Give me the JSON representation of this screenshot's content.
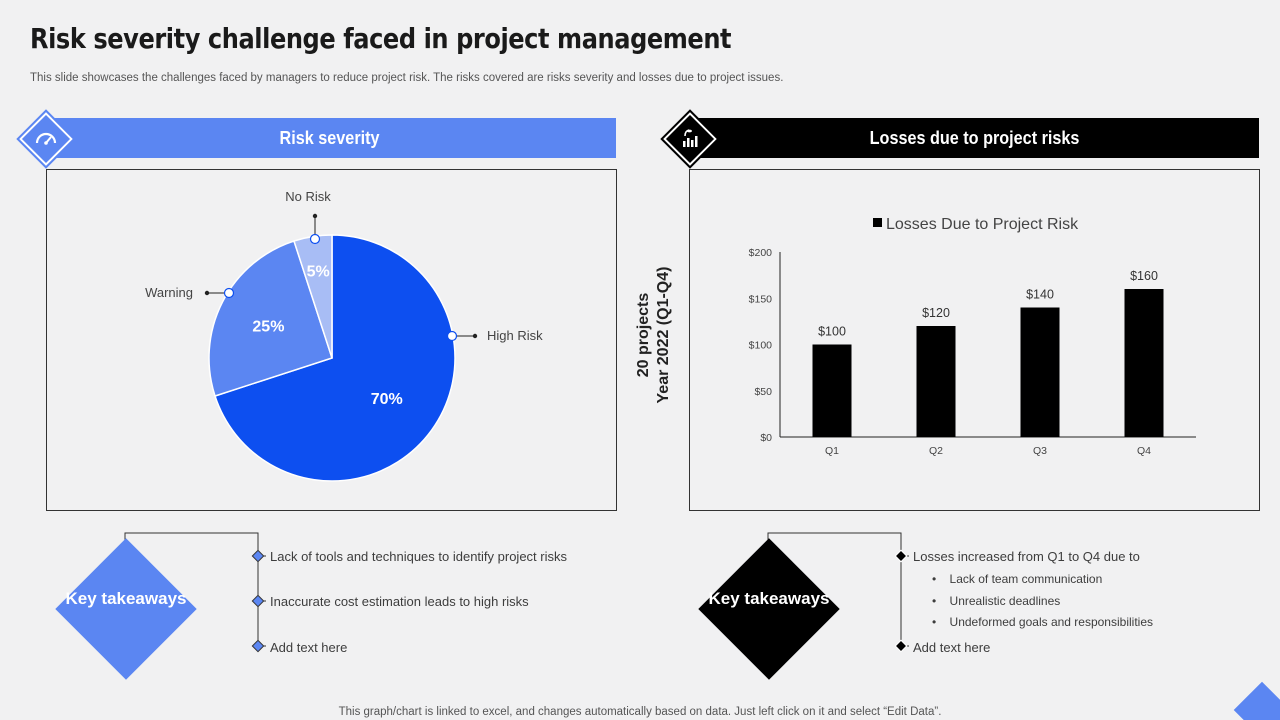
{
  "page": {
    "title": "Risk severity challenge faced in project management",
    "subtitle": "This slide showcases the challenges faced by managers to reduce project risk. The risks covered are risks severity and losses due to project issues.",
    "footer": "This graph/chart is linked to excel,  and changes automatically based on data. Just left click on it and select “Edit Data”."
  },
  "left": {
    "banner": "Risk severity",
    "key_takeaways": "Key takeaways",
    "bullets": [
      "Lack of tools and techniques to identify project risks",
      "Inaccurate cost estimation leads to high risks",
      "Add text here"
    ]
  },
  "right": {
    "banner": "Losses due to project risks",
    "axis_title_line1": "20 projects",
    "axis_title_line2": "Year 2022 (Q1-Q4)",
    "key_takeaways": "Key takeaways",
    "bullet_main": "Losses increased from Q1 to Q4 due to",
    "sub_bullets": [
      "Lack of team communication",
      "Unrealistic deadlines",
      "Undeformed goals and responsibilities"
    ],
    "bullet_last": "Add text here"
  },
  "colors": {
    "accent": "#5b86f2",
    "pie_high": "#0d4ff0",
    "pie_warning": "#5b86f2",
    "pie_norisk": "#a8bdf5",
    "bar": "#000000"
  },
  "chart_data": [
    {
      "type": "pie",
      "title": "Risk severity",
      "slices": [
        {
          "label": "High Risk",
          "value": 70,
          "display": "70%"
        },
        {
          "label": "Warning",
          "value": 25,
          "display": "25%"
        },
        {
          "label": "No Risk",
          "value": 5,
          "display": "5%"
        }
      ]
    },
    {
      "type": "bar",
      "title": "Losses Due to Project Risk",
      "categories": [
        "Q1",
        "Q2",
        "Q3",
        "Q4"
      ],
      "values": [
        100,
        120,
        140,
        160
      ],
      "value_labels": [
        "$100",
        "$120",
        "$140",
        "$160"
      ],
      "yticks": [
        0,
        50,
        100,
        150,
        200
      ],
      "ytick_labels": [
        "$0",
        "$50",
        "$100",
        "$150",
        "$200"
      ],
      "ylim": [
        0,
        200
      ],
      "legend": "Losses Due to Project Risk",
      "ylabel": "20 projects Year 2022 (Q1-Q4)"
    }
  ]
}
